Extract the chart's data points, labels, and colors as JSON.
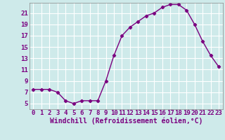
{
  "x": [
    0,
    1,
    2,
    3,
    4,
    5,
    6,
    7,
    8,
    9,
    10,
    11,
    12,
    13,
    14,
    15,
    16,
    17,
    18,
    19,
    20,
    21,
    22,
    23
  ],
  "y": [
    7.5,
    7.5,
    7.5,
    7.0,
    5.5,
    5.0,
    5.5,
    5.5,
    5.5,
    9.0,
    13.5,
    17.0,
    18.5,
    19.5,
    20.5,
    21.0,
    22.0,
    22.5,
    22.5,
    21.5,
    19.0,
    16.0,
    13.5,
    11.5
  ],
  "line_color": "#7b0080",
  "marker": "D",
  "marker_size": 2.2,
  "line_width": 1.0,
  "bg_color": "#ceeaea",
  "grid_color": "#b8dada",
  "xlabel": "Windchill (Refroidissement éolien,°C)",
  "xlabel_fontsize": 7,
  "tick_fontsize": 6.5,
  "xlim": [
    -0.5,
    23.5
  ],
  "ylim": [
    4.0,
    22.8
  ],
  "yticks": [
    5,
    7,
    9,
    11,
    13,
    15,
    17,
    19,
    21
  ],
  "xticks": [
    0,
    1,
    2,
    3,
    4,
    5,
    6,
    7,
    8,
    9,
    10,
    11,
    12,
    13,
    14,
    15,
    16,
    17,
    18,
    19,
    20,
    21,
    22,
    23
  ]
}
